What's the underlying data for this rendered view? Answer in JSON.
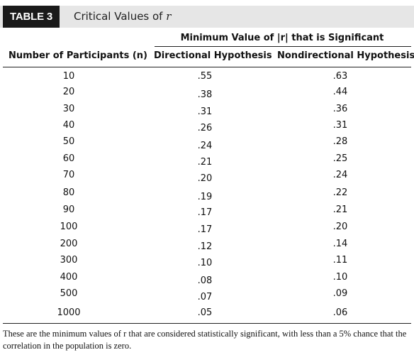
{
  "table": {
    "label": "TABLE 3",
    "title_prefix": "Critical Values of",
    "title_variable": "r"
  },
  "headers": {
    "span": "Minimum Value of |r| that is Significant",
    "col_participants": "Number of Participants (n)",
    "col_directional": "Directional Hypothesis",
    "col_nondirectional": "Nondirectional Hypothesis"
  },
  "rows": [
    {
      "n": "10",
      "directional": ".55",
      "nondirectional": ".63"
    },
    {
      "n": "20",
      "directional": ".38",
      "nondirectional": ".44"
    },
    {
      "n": "30",
      "directional": ".31",
      "nondirectional": ".36"
    },
    {
      "n": "40",
      "directional": ".26",
      "nondirectional": ".31"
    },
    {
      "n": "50",
      "directional": ".24",
      "nondirectional": ".28"
    },
    {
      "n": "60",
      "directional": ".21",
      "nondirectional": ".25"
    },
    {
      "n": "70",
      "directional": ".20",
      "nondirectional": ".24"
    },
    {
      "n": "80",
      "directional": ".19",
      "nondirectional": ".22"
    },
    {
      "n": "90",
      "directional": ".17",
      "nondirectional": ".21"
    },
    {
      "n": "100",
      "directional": ".17",
      "nondirectional": ".20"
    },
    {
      "n": "200",
      "directional": ".12",
      "nondirectional": ".14"
    },
    {
      "n": "300",
      "directional": ".10",
      "nondirectional": ".11"
    },
    {
      "n": "400",
      "directional": ".08",
      "nondirectional": ".10"
    },
    {
      "n": "500",
      "directional": ".07",
      "nondirectional": ".09"
    },
    {
      "n": "1000",
      "directional": ".05",
      "nondirectional": ".06"
    }
  ],
  "footnote": "These are the minimum values of r that are considered statistically significant, with less than a 5% chance that the correlation in the population is zero."
}
